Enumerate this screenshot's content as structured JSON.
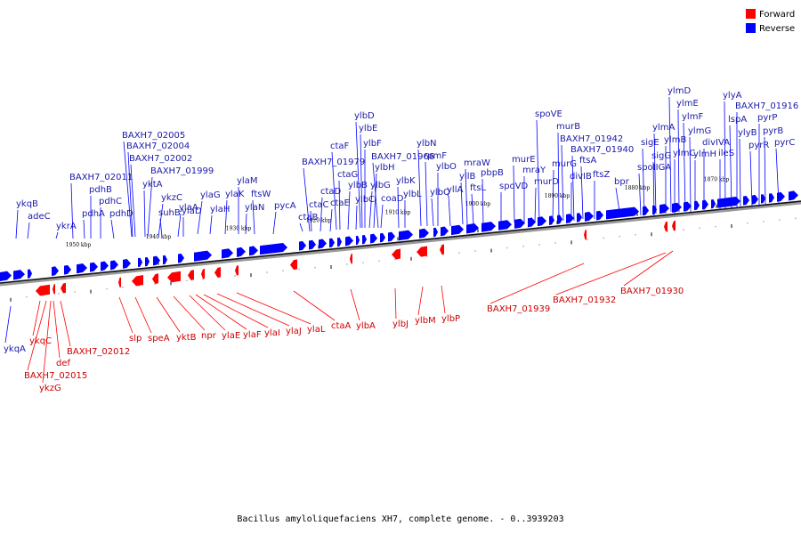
{
  "colors": {
    "forward": "#ff0000",
    "reverse": "#0000ff",
    "fwd_text": "#cc0000",
    "rev_text": "#1a1aaa"
  },
  "legend": [
    {
      "label": "Forward",
      "color": "#ff0000"
    },
    {
      "label": "Reverse",
      "color": "#0000ff"
    }
  ],
  "caption": "Bacillus amyloliquefaciens XH7, complete genome. - 0..3939203",
  "scale_labels": [
    "1950 kbp",
    "1940 kbp",
    "1930 kbp",
    "1920 kbp",
    "1910 kbp",
    "1900 kbp",
    "1890 kbp",
    "1880 kbp",
    "1870 kbp"
  ],
  "reverse_genes": [
    "ykqB",
    "adeC",
    "ykrA",
    "BAXH7_02011",
    "pdhA",
    "pdhB",
    "pdhC",
    "pdhD",
    "BAXH7_02005",
    "BAXH7_02004",
    "BAXH7_02002",
    "BAXH7_01999",
    "yktA",
    "ykzC",
    "suhB",
    "ylaA",
    "ylaD",
    "ylaG",
    "ylaH",
    "ylaK",
    "ylaM",
    "ylaN",
    "ftsW",
    "pycA",
    "ctaB",
    "ctaC",
    "BAXH7_01979",
    "ctaD",
    "ctaE",
    "ctaF",
    "ctaG",
    "ylbB",
    "ylbC",
    "ylbD",
    "ylbE",
    "ylbF",
    "ylbG",
    "ylbH",
    "BAXH7_01966",
    "coaD",
    "ylbK",
    "ylbL",
    "ylbN",
    "rpmF",
    "ylbO",
    "ylbQ",
    "yllA",
    "yllB",
    "mraW",
    "ftsL",
    "pbpB",
    "spoVD",
    "murE",
    "mraY",
    "murD",
    "spoVE",
    "murG",
    "murB",
    "BAXH7_01942",
    "divIB",
    "BAXH7_01940",
    "ftsA",
    "ftsZ",
    "bpr",
    "spoIIGA",
    "sigE",
    "sigG",
    "ylmA",
    "ylmB",
    "ylmC",
    "ylmD",
    "ylmE",
    "ylmF",
    "ylmG",
    "ylmH",
    "divIVA",
    "ileS",
    "ylyA",
    "BAXH7_01916",
    "lspA",
    "ylyB",
    "pyrR",
    "pyrP",
    "pyrB",
    "pyrC",
    "ykqA"
  ],
  "forward_genes": [
    "ykqC",
    "BAXH7_02015",
    "def",
    "ykzG",
    "BAXH7_02012",
    "slp",
    "speA",
    "yktB",
    "npr",
    "ylaE",
    "ylaF",
    "ylaI",
    "ylaJ",
    "ylaL",
    "ctaA",
    "ylbA",
    "ylbJ",
    "ylbM",
    "ylbP",
    "BAXH7_01939",
    "BAXH7_01932",
    "BAXH7_01930"
  ]
}
